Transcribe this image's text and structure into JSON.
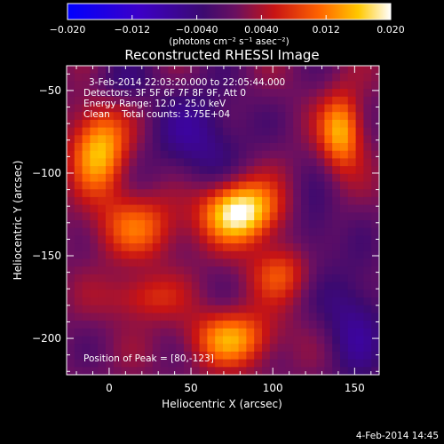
{
  "colorbar": {
    "ticks": [
      "−0.020",
      "−0.012",
      "−0.0040",
      "0.0040",
      "0.012",
      "0.020"
    ],
    "unit_label": "(photons cm⁻² s⁻¹ asec⁻²)",
    "range": [
      -0.02,
      0.02
    ]
  },
  "annotations": {
    "time_range": "3-Feb-2014 22:03:20.000 to 22:05:44.000",
    "detectors": "Detectors: 3F 5F 6F 7F 8F 9F, Att 0",
    "energy": "Energy Range: 12.0 - 25.0 keV",
    "clean": "Clean    Total counts: 3.75E+04",
    "peak": "Position of Peak = [80,-123]"
  },
  "footer": {
    "date": "4-Feb-2014 14:45"
  },
  "chart_data": {
    "type": "heatmap",
    "title": "Reconstructed RHESSI Image",
    "xlabel": "Heliocentric X (arcsec)",
    "ylabel": "Heliocentric Y (arcsec)",
    "xlim": [
      -26,
      165
    ],
    "ylim": [
      -222,
      -35
    ],
    "x_ticks": [
      "0",
      "50",
      "100",
      "150"
    ],
    "x_tick_values": [
      0,
      50,
      100,
      150
    ],
    "y_ticks": [
      "−50",
      "−100",
      "−150",
      "−200"
    ],
    "y_tick_values": [
      -50,
      -100,
      -150,
      -200
    ],
    "grid": false,
    "colormap": "hot-purple-blue",
    "peak": [
      80,
      -123
    ],
    "sources": [
      {
        "x": 80,
        "y": -123,
        "amp": 1.0,
        "sx": 16,
        "sy": 13
      },
      {
        "x": -6,
        "y": -85,
        "amp": 0.75,
        "sx": 12,
        "sy": 18
      },
      {
        "x": 142,
        "y": -75,
        "amp": 0.7,
        "sx": 9,
        "sy": 16
      },
      {
        "x": 75,
        "y": -200,
        "amp": 0.62,
        "sx": 18,
        "sy": 12
      },
      {
        "x": 18,
        "y": -132,
        "amp": 0.45,
        "sx": 20,
        "sy": 14
      },
      {
        "x": 105,
        "y": -160,
        "amp": 0.4,
        "sx": 14,
        "sy": 12
      },
      {
        "x": 20,
        "y": -175,
        "amp": 0.35,
        "sx": 16,
        "sy": 10
      }
    ],
    "negatives": [
      {
        "x": 55,
        "y": -78,
        "amp": 0.35,
        "sx": 20,
        "sy": 22
      },
      {
        "x": 150,
        "y": -190,
        "amp": 0.35,
        "sx": 14,
        "sy": 25
      },
      {
        "x": 125,
        "y": -135,
        "amp": 0.25,
        "sx": 10,
        "sy": 18
      },
      {
        "x": 5,
        "y": -45,
        "amp": 0.2,
        "sx": 14,
        "sy": 10
      }
    ]
  }
}
